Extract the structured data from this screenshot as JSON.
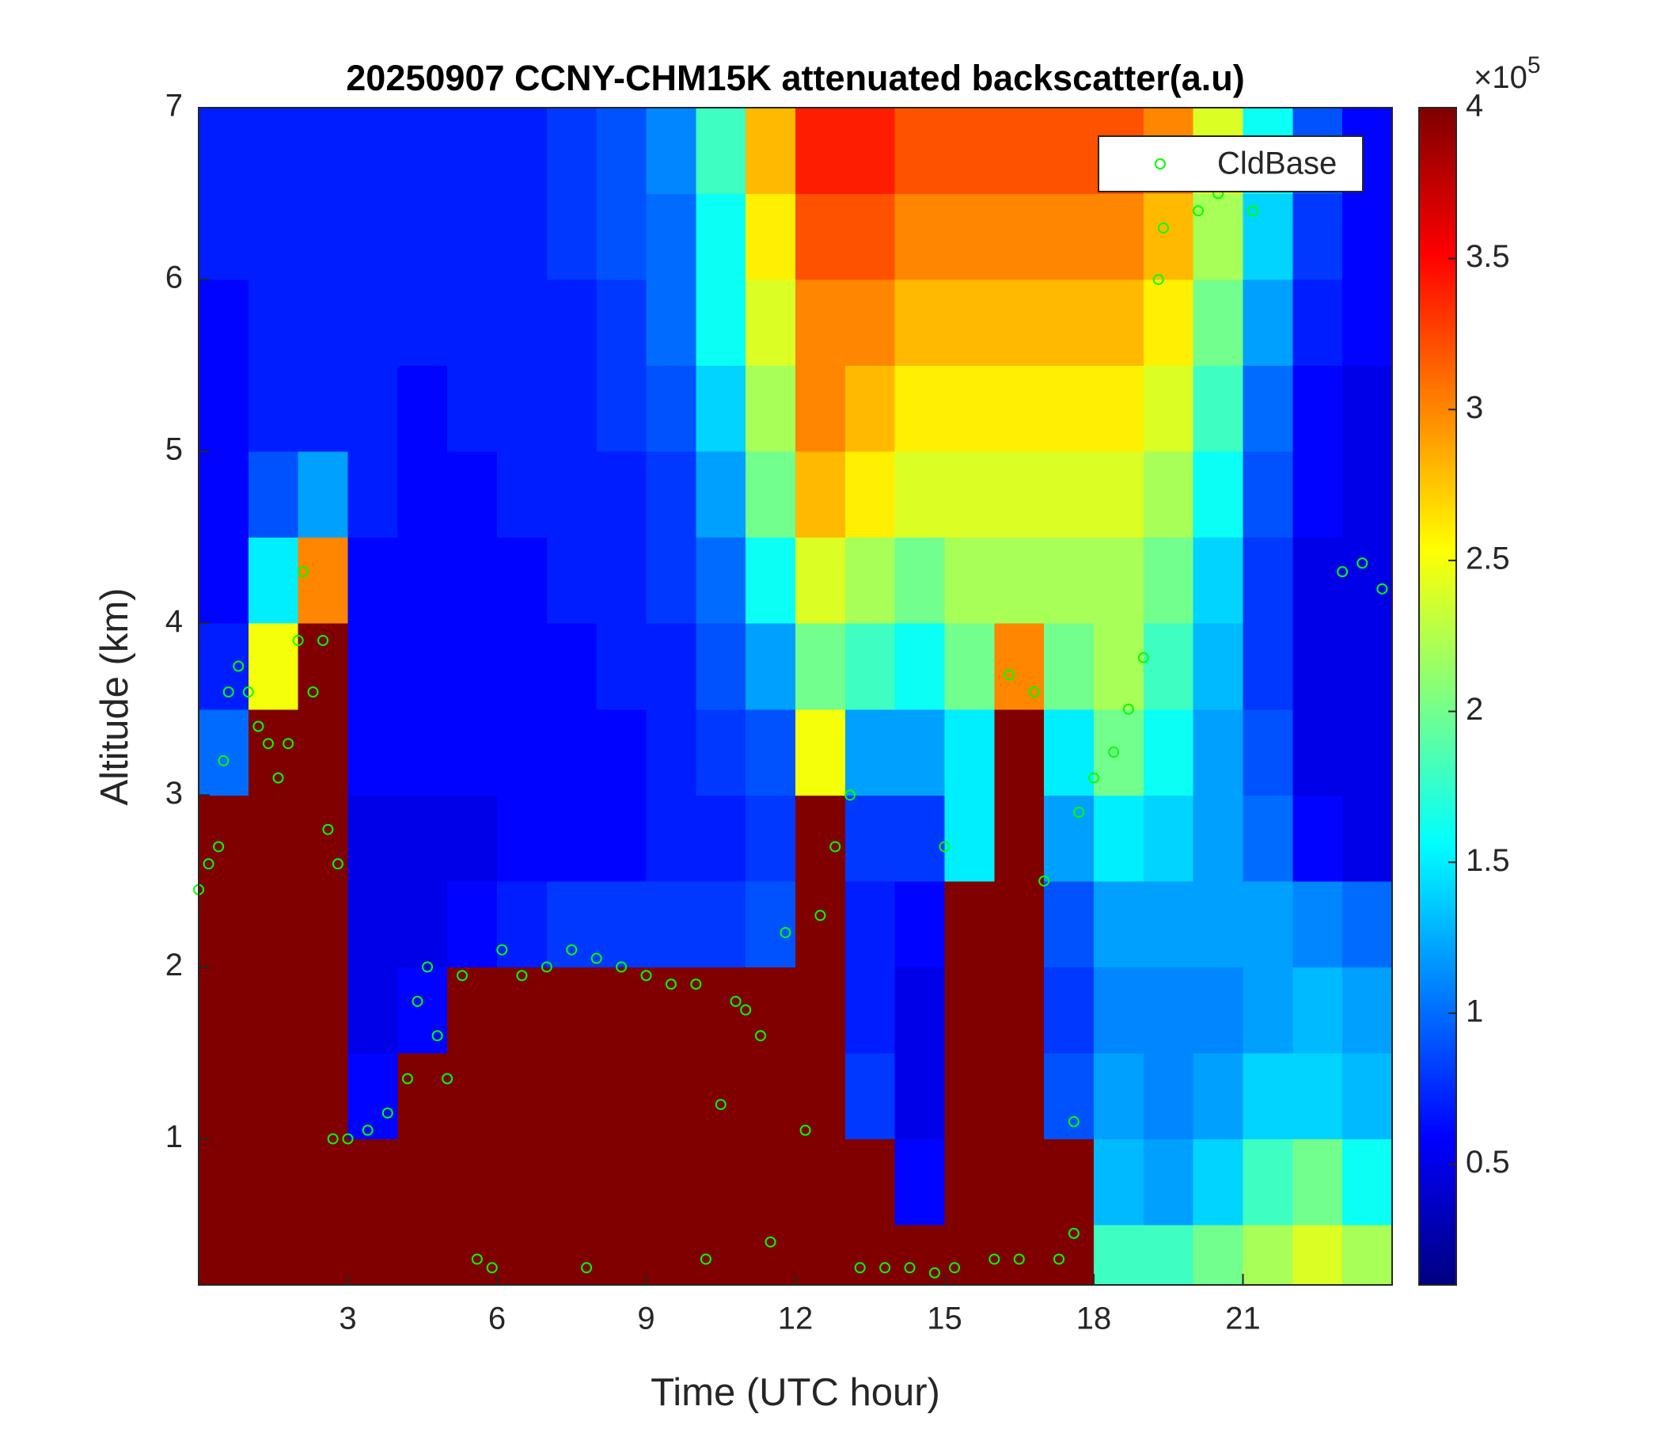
{
  "chart_data": {
    "type": "heatmap",
    "title": "20250907 CCNY-CHM15K attenuated backscatter(a.u)",
    "x_label": "Time (UTC hour)",
    "y_label": "Altitude (km)",
    "xlim": [
      0,
      24
    ],
    "ylim": [
      0.15,
      7
    ],
    "xticks": [
      3,
      6,
      9,
      12,
      15,
      18,
      21
    ],
    "yticks": [
      1,
      2,
      3,
      4,
      5,
      6,
      7
    ],
    "colormap": "jet",
    "clim": [
      0.1,
      4
    ],
    "cticks": [
      0.5,
      1,
      1.5,
      2,
      2.5,
      3,
      3.5,
      4
    ],
    "colorbar_multiplier_text": "×10",
    "colorbar_multiplier_exponent": "5",
    "x_bins": [
      0,
      1,
      2,
      3,
      4,
      5,
      6,
      7,
      8,
      9,
      10,
      11,
      12,
      13,
      14,
      15,
      16,
      17,
      18,
      19,
      20,
      21,
      22,
      23,
      24
    ],
    "y_bins": [
      0.15,
      0.5,
      1,
      1.5,
      2,
      2.5,
      3,
      3.5,
      4,
      4.5,
      5,
      5.5,
      6,
      6.5,
      7
    ],
    "z": [
      [
        4,
        4,
        4,
        4,
        4,
        4,
        4,
        4,
        4,
        4,
        4,
        4,
        4,
        4,
        4,
        4,
        4,
        4,
        1.8,
        1.8,
        2.0,
        2.2,
        2.4,
        2.2
      ],
      [
        4,
        4,
        4,
        4,
        4,
        4,
        4,
        4,
        4,
        4,
        4,
        4,
        4,
        4,
        0.6,
        4,
        4,
        4,
        1.3,
        1.2,
        1.4,
        1.8,
        2.0,
        1.6
      ],
      [
        4,
        4,
        4,
        0.6,
        4,
        4,
        4,
        4,
        4,
        4,
        4,
        4,
        4,
        0.8,
        0.5,
        4,
        4,
        0.9,
        1.2,
        1.1,
        1.2,
        1.4,
        1.4,
        1.3
      ],
      [
        4,
        4,
        4,
        0.5,
        0.6,
        4,
        4,
        4,
        4,
        4,
        4,
        4,
        4,
        0.7,
        0.5,
        4,
        4,
        0.8,
        1.1,
        1.1,
        1.1,
        1.2,
        1.3,
        1.2
      ],
      [
        4,
        4,
        4,
        0.5,
        0.5,
        0.6,
        0.7,
        0.8,
        0.8,
        0.8,
        0.8,
        0.9,
        4,
        0.7,
        0.6,
        4,
        4,
        0.9,
        1.2,
        1.2,
        1.2,
        1.2,
        1.1,
        1.0
      ],
      [
        4,
        4,
        4,
        0.5,
        0.5,
        0.5,
        0.6,
        0.6,
        0.6,
        0.7,
        0.7,
        0.8,
        4,
        0.8,
        0.8,
        1.5,
        4,
        1.2,
        1.5,
        1.4,
        1.2,
        1.0,
        0.6,
        0.5
      ],
      [
        1.0,
        4,
        4,
        0.6,
        0.6,
        0.6,
        0.6,
        0.6,
        0.6,
        0.7,
        0.8,
        0.9,
        2.5,
        1.2,
        1.2,
        1.5,
        4,
        1.5,
        2.0,
        1.6,
        1.2,
        0.9,
        0.5,
        0.5
      ],
      [
        0.7,
        2.5,
        4,
        0.6,
        0.6,
        0.6,
        0.6,
        0.6,
        0.7,
        0.7,
        0.9,
        1.2,
        2.0,
        1.8,
        1.6,
        2.0,
        3.0,
        2.0,
        2.2,
        1.8,
        1.3,
        0.8,
        0.5,
        0.5
      ],
      [
        0.6,
        1.5,
        3.0,
        0.6,
        0.6,
        0.6,
        0.6,
        0.7,
        0.7,
        0.8,
        1.0,
        1.6,
        2.4,
        2.2,
        2.0,
        2.2,
        2.2,
        2.2,
        2.2,
        2.0,
        1.4,
        0.8,
        0.5,
        0.5
      ],
      [
        0.6,
        0.9,
        1.2,
        0.7,
        0.6,
        0.6,
        0.7,
        0.7,
        0.7,
        0.8,
        1.2,
        2.0,
        2.8,
        2.6,
        2.4,
        2.4,
        2.4,
        2.4,
        2.4,
        2.2,
        1.6,
        0.9,
        0.6,
        0.5
      ],
      [
        0.6,
        0.7,
        0.7,
        0.7,
        0.6,
        0.7,
        0.7,
        0.7,
        0.8,
        0.9,
        1.4,
        2.2,
        3.0,
        2.8,
        2.6,
        2.6,
        2.6,
        2.6,
        2.6,
        2.4,
        1.8,
        1.0,
        0.6,
        0.5
      ],
      [
        0.6,
        0.7,
        0.7,
        0.7,
        0.7,
        0.7,
        0.7,
        0.7,
        0.8,
        1.0,
        1.6,
        2.4,
        3.0,
        3.0,
        2.8,
        2.8,
        2.8,
        2.8,
        2.8,
        2.6,
        2.0,
        1.2,
        0.7,
        0.6
      ],
      [
        0.7,
        0.7,
        0.7,
        0.7,
        0.7,
        0.7,
        0.7,
        0.8,
        0.9,
        1.0,
        1.6,
        2.6,
        3.2,
        3.2,
        3.0,
        3.0,
        3.0,
        3.0,
        3.0,
        2.8,
        2.2,
        1.4,
        0.8,
        0.6
      ],
      [
        0.7,
        0.7,
        0.7,
        0.7,
        0.7,
        0.7,
        0.7,
        0.8,
        0.9,
        1.1,
        1.8,
        2.8,
        3.4,
        3.4,
        3.2,
        3.2,
        3.2,
        3.2,
        3.2,
        3.0,
        2.4,
        1.6,
        0.9,
        0.6
      ]
    ],
    "series": [
      {
        "name": "CldBase",
        "color": "#00ff00",
        "x": [
          0.0,
          0.2,
          0.4,
          0.5,
          0.6,
          0.8,
          1.0,
          1.2,
          1.4,
          1.6,
          1.8,
          2.0,
          2.1,
          2.3,
          2.5,
          2.6,
          2.8,
          2.7,
          3.0,
          3.4,
          3.8,
          4.2,
          4.4,
          4.6,
          4.8,
          5.0,
          5.3,
          5.6,
          5.9,
          6.1,
          6.5,
          7.0,
          7.5,
          7.8,
          8.0,
          8.5,
          9.0,
          9.5,
          10.0,
          10.2,
          10.5,
          10.8,
          11.0,
          11.3,
          11.5,
          11.8,
          12.2,
          12.5,
          12.8,
          13.1,
          13.3,
          13.8,
          14.3,
          14.8,
          15.2,
          15.0,
          16.0,
          16.5,
          16.3,
          16.8,
          17.0,
          17.3,
          17.6,
          17.6,
          17.7,
          18.0,
          18.4,
          18.7,
          19.0,
          19.3,
          19.4,
          20.1,
          20.5,
          21.2,
          23.0,
          23.4,
          23.8
        ],
        "y": [
          2.45,
          2.6,
          2.7,
          3.2,
          3.6,
          3.75,
          3.6,
          3.4,
          3.3,
          3.1,
          3.3,
          3.9,
          4.3,
          3.6,
          3.9,
          2.8,
          2.6,
          1.0,
          1.0,
          1.05,
          1.15,
          1.35,
          1.8,
          2.0,
          1.6,
          1.35,
          1.95,
          0.3,
          0.25,
          2.1,
          1.95,
          2.0,
          2.1,
          0.25,
          2.05,
          2.0,
          1.95,
          1.9,
          1.9,
          0.3,
          1.2,
          1.8,
          1.75,
          1.6,
          0.4,
          2.2,
          1.05,
          2.3,
          2.7,
          3.0,
          0.25,
          0.25,
          0.25,
          0.22,
          0.25,
          2.7,
          0.3,
          0.3,
          3.7,
          3.6,
          2.5,
          0.3,
          0.45,
          1.1,
          2.9,
          3.1,
          3.25,
          3.5,
          3.8,
          6.0,
          6.3,
          6.4,
          6.5,
          6.4,
          4.3,
          4.35,
          4.2
        ]
      }
    ],
    "legend": "northeast"
  }
}
